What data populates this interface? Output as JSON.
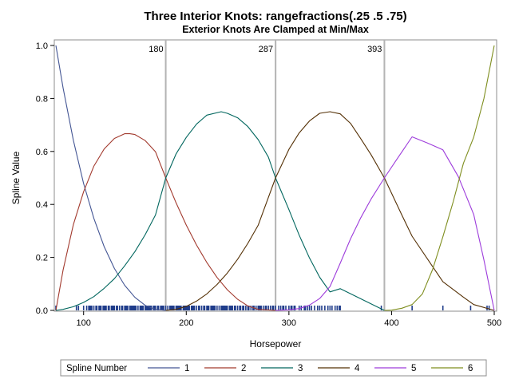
{
  "chart_data": {
    "type": "line",
    "title": "Three Interior Knots: rangefractions(.25 .5 .75)",
    "subtitle": "Exterior Knots Are Clamped at Min/Max",
    "xlabel": "Horsepower",
    "ylabel": "Spline Value",
    "xlim": [
      73,
      500
    ],
    "ylim": [
      0,
      1
    ],
    "x_ticks": [
      100,
      200,
      300,
      400,
      500
    ],
    "y_ticks": [
      "0.0",
      "0.2",
      "0.4",
      "0.6",
      "0.8",
      "1.0"
    ],
    "knots": [
      {
        "value": 180,
        "label": "180"
      },
      {
        "value": 287,
        "label": "287"
      },
      {
        "value": 393,
        "label": "393"
      }
    ],
    "legend": {
      "title": "Spline Number",
      "position": "bottom"
    },
    "series": [
      {
        "name": "1",
        "color": "#445694",
        "x": [
          73,
          80,
          90,
          100,
          110,
          120,
          130,
          140,
          150,
          160,
          170,
          180
        ],
        "y": [
          1.0,
          0.84,
          0.642,
          0.479,
          0.347,
          0.241,
          0.158,
          0.095,
          0.049,
          0.019,
          0.004,
          0.0
        ]
      },
      {
        "name": "2",
        "color": "#A23A2E",
        "x": [
          73,
          80,
          90,
          100,
          110,
          120,
          130,
          140,
          145,
          150,
          160,
          170,
          180,
          190,
          200,
          210,
          220,
          230,
          240,
          250,
          260,
          270,
          287
        ],
        "y": [
          0.0,
          0.152,
          0.324,
          0.448,
          0.545,
          0.609,
          0.649,
          0.667,
          0.667,
          0.664,
          0.641,
          0.599,
          0.5,
          0.407,
          0.322,
          0.247,
          0.181,
          0.124,
          0.078,
          0.042,
          0.017,
          0.004,
          0.0
        ]
      },
      {
        "name": "3",
        "color": "#01665E",
        "x": [
          73,
          80,
          90,
          100,
          110,
          120,
          130,
          140,
          150,
          160,
          170,
          180,
          190,
          200,
          210,
          220,
          234,
          240,
          250,
          260,
          270,
          280,
          287,
          300,
          310,
          320,
          330,
          340,
          350,
          393
        ],
        "y": [
          0.0,
          0.004,
          0.014,
          0.03,
          0.052,
          0.083,
          0.12,
          0.168,
          0.222,
          0.286,
          0.36,
          0.5,
          0.59,
          0.653,
          0.703,
          0.737,
          0.75,
          0.744,
          0.727,
          0.694,
          0.645,
          0.579,
          0.5,
          0.38,
          0.284,
          0.198,
          0.125,
          0.07,
          0.082,
          0.0
        ]
      },
      {
        "name": "4",
        "color": "#543005",
        "x": [
          180,
          190,
          200,
          210,
          220,
          230,
          240,
          250,
          260,
          270,
          287,
          300,
          310,
          320,
          330,
          340,
          350,
          360,
          370,
          380,
          393,
          410,
          420,
          440,
          450,
          470,
          480,
          500
        ],
        "y": [
          0.0,
          0.004,
          0.015,
          0.035,
          0.062,
          0.098,
          0.141,
          0.193,
          0.253,
          0.321,
          0.5,
          0.608,
          0.67,
          0.715,
          0.744,
          0.75,
          0.742,
          0.706,
          0.648,
          0.588,
          0.5,
          0.36,
          0.28,
          0.165,
          0.108,
          0.05,
          0.022,
          0.0
        ]
      },
      {
        "name": "5",
        "color": "#9D3CDB",
        "x": [
          287,
          300,
          310,
          320,
          330,
          340,
          350,
          360,
          370,
          380,
          393,
          405,
          420,
          435,
          450,
          465,
          480,
          490,
          500
        ],
        "y": [
          0.0,
          0.002,
          0.007,
          0.02,
          0.045,
          0.09,
          0.178,
          0.27,
          0.35,
          0.42,
          0.5,
          0.57,
          0.655,
          0.632,
          0.606,
          0.505,
          0.362,
          0.19,
          0.0
        ]
      },
      {
        "name": "6",
        "color": "#7F8E1F",
        "x": [
          393,
          400,
          410,
          420,
          430,
          440,
          450,
          460,
          470,
          480,
          490,
          500
        ],
        "y": [
          0.0,
          0.001,
          0.008,
          0.022,
          0.062,
          0.155,
          0.278,
          0.41,
          0.555,
          0.654,
          0.8,
          1.0
        ]
      }
    ],
    "rug_color": "#1F3C8A",
    "rug_x": [
      73,
      93,
      95,
      100,
      103,
      105,
      106,
      107,
      108,
      110,
      112,
      113,
      115,
      116,
      117,
      119,
      120,
      121,
      122,
      124,
      125,
      127,
      128,
      129,
      130,
      132,
      133,
      135,
      137,
      138,
      140,
      141,
      142,
      143,
      145,
      146,
      147,
      148,
      149,
      150,
      151,
      153,
      155,
      156,
      157,
      158,
      160,
      161,
      162,
      163,
      164,
      165,
      166,
      168,
      169,
      170,
      172,
      173,
      175,
      176,
      177,
      178,
      180,
      182,
      184,
      185,
      186,
      187,
      188,
      190,
      191,
      192,
      193,
      194,
      195,
      197,
      198,
      199,
      200,
      201,
      202,
      203,
      205,
      206,
      207,
      208,
      210,
      212,
      213,
      215,
      217,
      218,
      220,
      221,
      222,
      224,
      225,
      226,
      227,
      228,
      230,
      232,
      234,
      235,
      236,
      237,
      238,
      239,
      240,
      242,
      243,
      244,
      245,
      247,
      248,
      250,
      252,
      253,
      255,
      256,
      258,
      260,
      261,
      263,
      265,
      266,
      268,
      270,
      271,
      272,
      273,
      275,
      277,
      278,
      280,
      282,
      284,
      285,
      287,
      290,
      292,
      294,
      295,
      297,
      300,
      302,
      303,
      305,
      306,
      310,
      312,
      315,
      316,
      318,
      320,
      322,
      325,
      328,
      330,
      332,
      335,
      338,
      340,
      342,
      345,
      347,
      349,
      350,
      390,
      420,
      450,
      477,
      493,
      495
    ]
  }
}
